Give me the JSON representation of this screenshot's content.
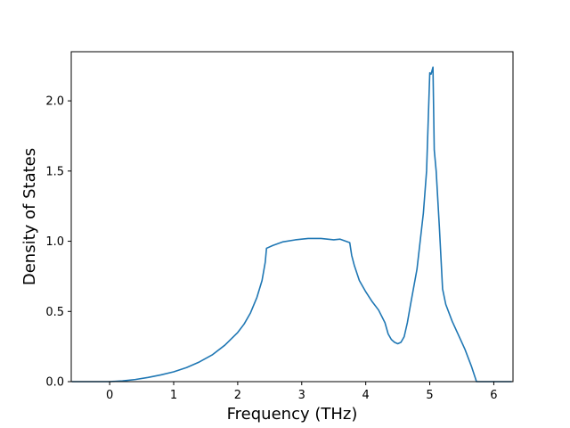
{
  "chart_data": {
    "type": "line",
    "xlabel": "Frequency (THz)",
    "ylabel": "Density of States",
    "xlim": [
      -0.6,
      6.3
    ],
    "ylim": [
      0.0,
      2.35
    ],
    "xticks": [
      0,
      1,
      2,
      3,
      4,
      5,
      6
    ],
    "xtick_labels": [
      "0",
      "1",
      "2",
      "3",
      "4",
      "5",
      "6"
    ],
    "yticks": [
      0.0,
      0.5,
      1.0,
      1.5,
      2.0
    ],
    "ytick_labels": [
      "0.0",
      "0.5",
      "1.0",
      "1.5",
      "2.0"
    ],
    "grid": false,
    "series": [
      {
        "color": "#1f77b4",
        "x": [
          -0.59,
          0.0,
          0.2,
          0.4,
          0.6,
          0.8,
          1.0,
          1.2,
          1.4,
          1.6,
          1.8,
          2.0,
          2.1,
          2.2,
          2.3,
          2.38,
          2.43,
          2.45,
          2.55,
          2.7,
          2.9,
          3.1,
          3.3,
          3.5,
          3.6,
          3.75,
          3.78,
          3.82,
          3.9,
          4.0,
          4.1,
          4.2,
          4.3,
          4.35,
          4.4,
          4.45,
          4.5,
          4.55,
          4.6,
          4.65,
          4.7,
          4.8,
          4.9,
          4.95,
          5.0,
          5.02,
          5.05,
          5.07,
          5.1,
          5.15,
          5.2,
          5.25,
          5.35,
          5.45,
          5.55,
          5.65,
          5.73,
          5.8,
          6.0,
          6.28
        ],
        "values": [
          0.0,
          0.0,
          0.005,
          0.015,
          0.03,
          0.048,
          0.07,
          0.1,
          0.14,
          0.19,
          0.26,
          0.35,
          0.41,
          0.49,
          0.6,
          0.72,
          0.85,
          0.95,
          0.97,
          0.995,
          1.01,
          1.02,
          1.02,
          1.01,
          1.015,
          0.99,
          0.9,
          0.83,
          0.72,
          0.64,
          0.57,
          0.51,
          0.42,
          0.34,
          0.3,
          0.28,
          0.27,
          0.28,
          0.32,
          0.42,
          0.55,
          0.8,
          1.2,
          1.5,
          2.2,
          2.19,
          2.24,
          1.65,
          1.5,
          1.1,
          0.66,
          0.55,
          0.43,
          0.33,
          0.23,
          0.11,
          0.0,
          0.0,
          0.0,
          0.0
        ]
      }
    ]
  }
}
